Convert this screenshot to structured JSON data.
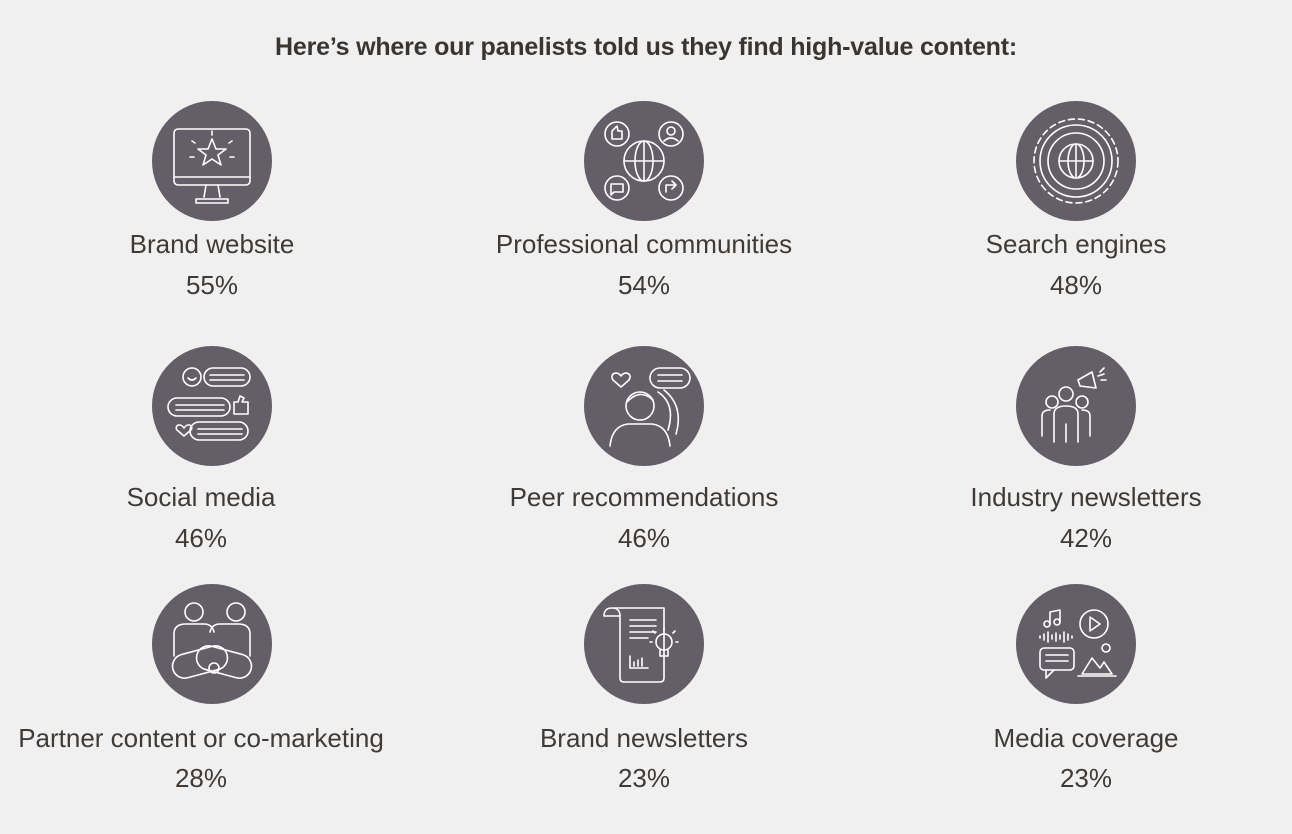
{
  "title": "Here’s where our panelists told us they find high-value content:",
  "items": [
    {
      "label": "Brand website",
      "percent": "55%",
      "icon": "monitor-star-icon"
    },
    {
      "label": "Professional communities",
      "percent": "54%",
      "icon": "globe-network-icon"
    },
    {
      "label": "Search engines",
      "percent": "48%",
      "icon": "gear-globe-icon"
    },
    {
      "label": "Social media",
      "percent": "46%",
      "icon": "chat-bubbles-icon"
    },
    {
      "label": "Peer recommendations",
      "percent": "46%",
      "icon": "person-speech-icon"
    },
    {
      "label": "Industry newsletters",
      "percent": "42%",
      "icon": "group-megaphone-icon"
    },
    {
      "label": "Partner content or co-marketing",
      "percent": "28%",
      "icon": "partners-handshake-icon"
    },
    {
      "label": "Brand newsletters",
      "percent": "23%",
      "icon": "document-lightbulb-icon"
    },
    {
      "label": "Media coverage",
      "percent": "23%",
      "icon": "media-collage-icon"
    }
  ],
  "colors": {
    "background": "#f0f0f0",
    "icon_circle": "#645e69",
    "text": "#3f3a36"
  }
}
